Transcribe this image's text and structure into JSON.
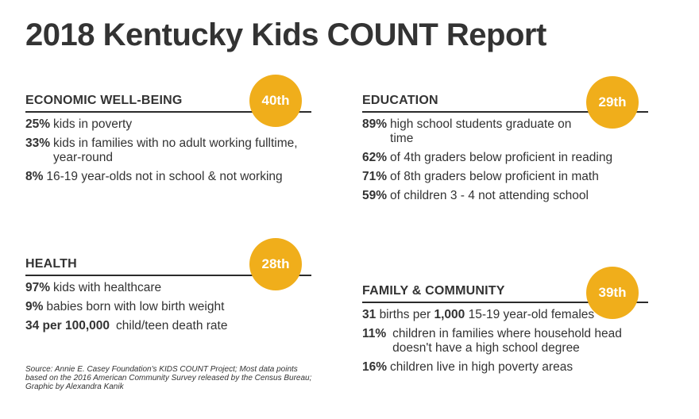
{
  "title": "2018 Kentucky Kids COUNT Report",
  "colors": {
    "badge": "#f0ae1b",
    "rule": "#2b2b2b",
    "text": "#333333"
  },
  "economic": {
    "heading": "ECONOMIC WELL-BEING",
    "rank": "40th",
    "stats": [
      {
        "value": "25%",
        "text": "kids in poverty"
      },
      {
        "value": "33%",
        "text": "kids in families with no adult working fulltime, year-round"
      },
      {
        "value": "8%",
        "text": "16-19 year-olds not in school & not working"
      }
    ]
  },
  "education": {
    "heading": "EDUCATION",
    "rank": "29th",
    "stats": [
      {
        "value": "89%",
        "text": "high school students graduate on time"
      },
      {
        "value": "62%",
        "text": "of 4th graders below proficient in reading"
      },
      {
        "value": "71%",
        "text": "of 8th graders below proficient in math"
      },
      {
        "value": "59%",
        "text": "of children 3 - 4 not attending school"
      }
    ]
  },
  "health": {
    "heading": "HEALTH",
    "rank": "28th",
    "stats": [
      {
        "value": "97%",
        "text": "kids with healthcare"
      },
      {
        "value": "9%",
        "text": "babies born with low birth weight"
      },
      {
        "value": "34 per 100,000",
        "text": "child/teen death rate"
      }
    ]
  },
  "family": {
    "heading": "FAMILY & COMMUNITY",
    "rank": "39th",
    "births": {
      "value": "31",
      "mid": "births per",
      "value2": "1,000",
      "text": "15-19 year-old females"
    },
    "stats": [
      {
        "value": "11%",
        "text": "children in families where household head doesn't have a high school degree"
      },
      {
        "value": "16%",
        "text": "children live in high poverty areas"
      }
    ]
  },
  "source": "Source: Annie E. Casey Foundation's KIDS COUNT Project; Most data points based on the 2016 American Community Survey released by the Census Bureau; Graphic by Alexandra Kanik"
}
